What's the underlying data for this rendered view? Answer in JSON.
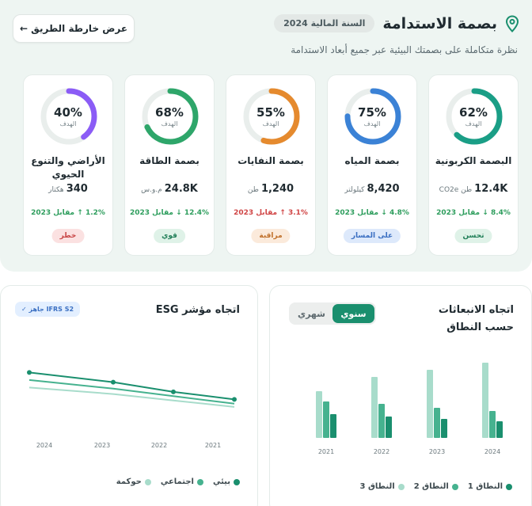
{
  "header": {
    "title": "بصمة الاستدامة",
    "year_label": "السنة المالية 2024",
    "subtitle": "نظرة متكاملة على بصمتك البيئية عبر جميع أبعاد الاستدامة",
    "roadmap_label": "عرض خارطة الطريق ←",
    "accent": "#1a8f6e"
  },
  "cards": [
    {
      "name": "البصمة الكربونية",
      "pct": "62%",
      "progress": 0.62,
      "target_label": "الهدف",
      "value": "12.4K",
      "unit": "طن CO2e",
      "change": "8.4% ↓ مقابل 2023",
      "change_dir": "green",
      "badge": "تحسن",
      "badge_style": "b-green",
      "color": "#1a9e86"
    },
    {
      "name": "بصمة المياه",
      "pct": "75%",
      "progress": 0.75,
      "target_label": "الهدف",
      "value": "8,420",
      "unit": "كيلولتر",
      "change": "4.8% ↓ مقابل 2023",
      "change_dir": "green",
      "badge": "على المسار",
      "badge_style": "b-blue",
      "color": "#3b82d6"
    },
    {
      "name": "بصمة النفايات",
      "pct": "55%",
      "progress": 0.55,
      "target_label": "الهدف",
      "value": "1,240",
      "unit": "طن",
      "change": "3.1% ↑ مقابل 2023",
      "change_dir": "red",
      "badge": "مراقبة",
      "badge_style": "b-orange",
      "color": "#e58a2e"
    },
    {
      "name": "بصمة الطاقة",
      "pct": "68%",
      "progress": 0.68,
      "target_label": "الهدف",
      "value": "24.8K",
      "unit": "م.و.س",
      "change": "12.4% ↓ مقابل 2023",
      "change_dir": "green",
      "badge": "قوي",
      "badge_style": "b-green",
      "color": "#2ea66a"
    },
    {
      "name": "الأراضي والتنوع الحيوي",
      "pct": "40%",
      "progress": 0.4,
      "target_label": "الهدف",
      "value": "340",
      "unit": "هكتار",
      "change": "1.2% ↑ مقابل 2023",
      "change_dir": "green",
      "badge": "خطر",
      "badge_style": "b-red",
      "color": "#8b5cf6"
    }
  ],
  "emissions": {
    "title": "اتجاه الانبعاثات حسب النطاق",
    "toggle": {
      "yearly": "سنوي",
      "monthly": "شهري"
    },
    "legend": [
      "النطاق 1",
      "النطاق 2",
      "النطاق 3"
    ]
  },
  "esg": {
    "title": "اتجاه مؤشر ESG",
    "ready_label": "IFRS S2 جاهز ✓",
    "legend": [
      "بيئي",
      "اجتماعي",
      "حوكمة"
    ]
  },
  "chart_data": [
    {
      "type": "bar",
      "categories": [
        "2021",
        "2022",
        "2023",
        "2024"
      ],
      "series": [
        {
          "name": "النطاق 1",
          "values": [
            30,
            27,
            24,
            21
          ],
          "color": "#1a8f6e"
        },
        {
          "name": "النطاق 2",
          "values": [
            46,
            43,
            38,
            34
          ],
          "color": "#46b28f"
        },
        {
          "name": "النطاق 3",
          "values": [
            59,
            77,
            86,
            95
          ],
          "color": "#a8dccb"
        }
      ],
      "ylim": [
        0,
        100
      ],
      "grid": false
    },
    {
      "type": "line",
      "x": [
        "2024",
        "2023",
        "2022",
        "2021"
      ],
      "series": [
        {
          "name": "بيئي",
          "values": [
            82,
            73,
            64,
            57
          ],
          "color": "#1a8f6e"
        },
        {
          "name": "اجتماعي",
          "values": [
            75,
            67,
            60,
            53
          ],
          "color": "#46b28f"
        },
        {
          "name": "حوكمة",
          "values": [
            68,
            62,
            56,
            50
          ],
          "color": "#a8dccb"
        }
      ],
      "ylim": [
        30,
        100
      ],
      "grid": false
    }
  ]
}
